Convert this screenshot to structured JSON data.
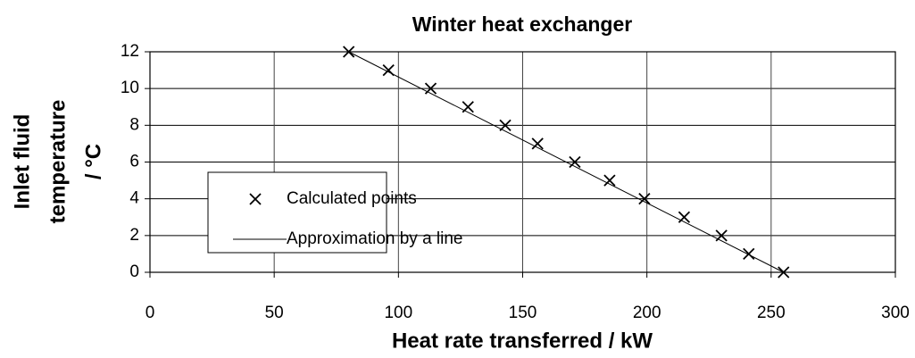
{
  "chart_data": {
    "type": "scatter",
    "title": "Winter heat exchanger",
    "xlabel": "Heat rate transferred / kW",
    "ylabel": [
      "Inlet fluid",
      "temperature",
      "/ °C"
    ],
    "xlim": [
      0,
      300
    ],
    "xticks": [
      0,
      50,
      100,
      150,
      200,
      250,
      300
    ],
    "ylim": [
      0,
      12
    ],
    "yticks": [
      0,
      2,
      4,
      6,
      8,
      10,
      12
    ],
    "grid": true,
    "legend": "lower left",
    "series": [
      {
        "name": "Calculated points",
        "color": "#000000",
        "marker": "x",
        "x": [
          80,
          96,
          113,
          128,
          143,
          156,
          171,
          185,
          199,
          215,
          230,
          241,
          255
        ],
        "y": [
          12,
          11,
          10,
          9,
          8,
          7,
          6,
          5,
          4,
          3,
          2,
          1,
          0
        ]
      },
      {
        "name": "Approximation by a line",
        "color": "#000000",
        "marker": "line",
        "x": [
          80,
          255
        ],
        "y": [
          12,
          0
        ]
      }
    ]
  }
}
